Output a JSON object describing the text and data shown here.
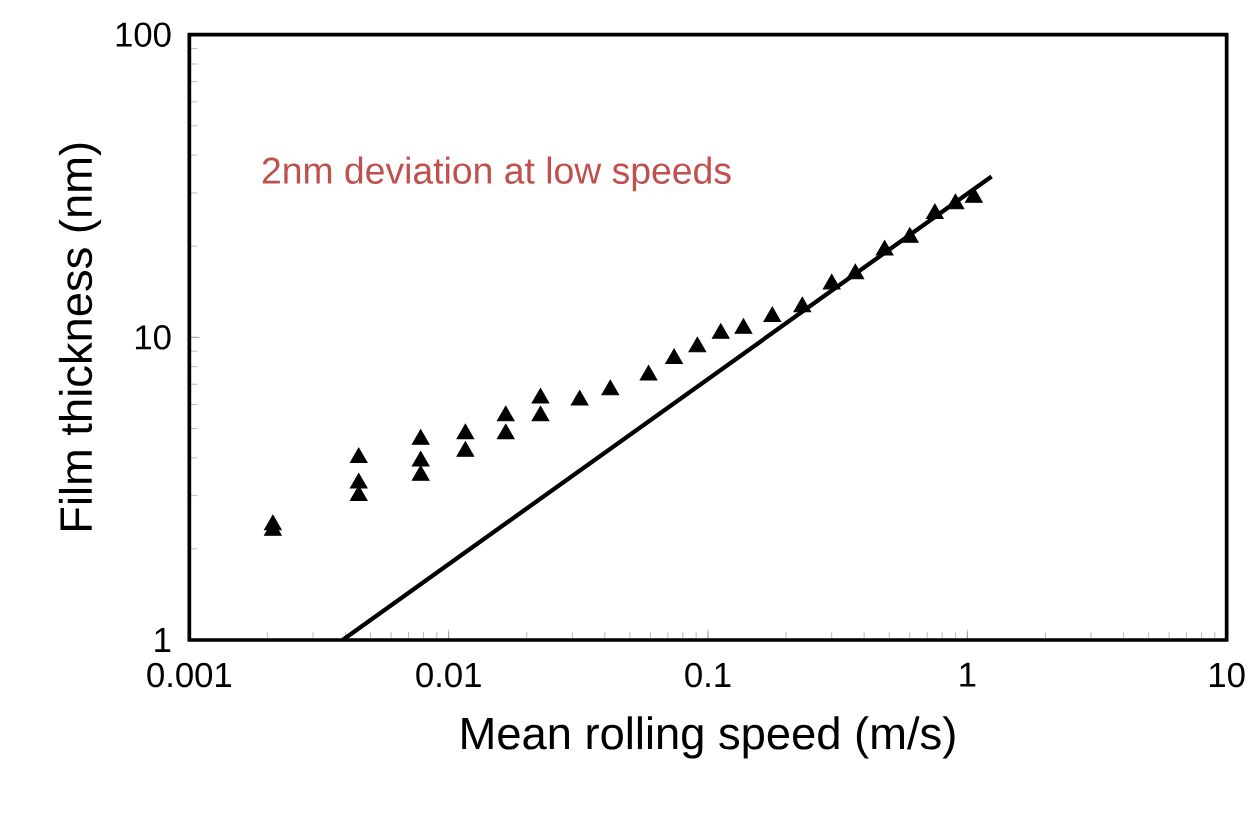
{
  "chart_data": {
    "type": "scatter",
    "xlabel": "Mean rolling speed (m/s)",
    "ylabel": "Film thickness (nm)",
    "log": "xy",
    "xlim": [
      0.001,
      10
    ],
    "ylim": [
      1,
      100
    ],
    "xticks": [
      0.001,
      0.01,
      0.1,
      1,
      10
    ],
    "yticks": [
      1,
      10,
      100
    ],
    "grid": false,
    "annotations": [
      "2nm deviation at low speeds"
    ],
    "series": [
      {
        "marker": "triangle",
        "color": "#000000",
        "x": [
          0.0021,
          0.0021,
          0.0045,
          0.0045,
          0.0045,
          0.0078,
          0.0078,
          0.0078,
          0.0116,
          0.0116,
          0.0166,
          0.0166,
          0.0226,
          0.0226,
          0.032,
          0.042,
          0.059,
          0.074,
          0.091,
          0.112,
          0.137,
          0.177,
          0.231,
          0.3,
          0.37,
          0.48,
          0.6,
          0.75,
          0.9,
          1.06
        ],
        "values": [
          2.3,
          2.4,
          4.0,
          3.3,
          3.0,
          4.6,
          3.9,
          3.5,
          4.8,
          4.2,
          5.5,
          4.8,
          6.3,
          5.5,
          6.2,
          6.7,
          7.5,
          8.5,
          9.3,
          10.3,
          10.7,
          11.7,
          12.6,
          15.0,
          16.2,
          19.4,
          21.4,
          25.6,
          27.6,
          29
        ]
      },
      {
        "type": "line",
        "marker": "none",
        "color": "#000000",
        "x": [
          0.0039,
          1.24
        ],
        "values": [
          1,
          34
        ]
      }
    ]
  }
}
